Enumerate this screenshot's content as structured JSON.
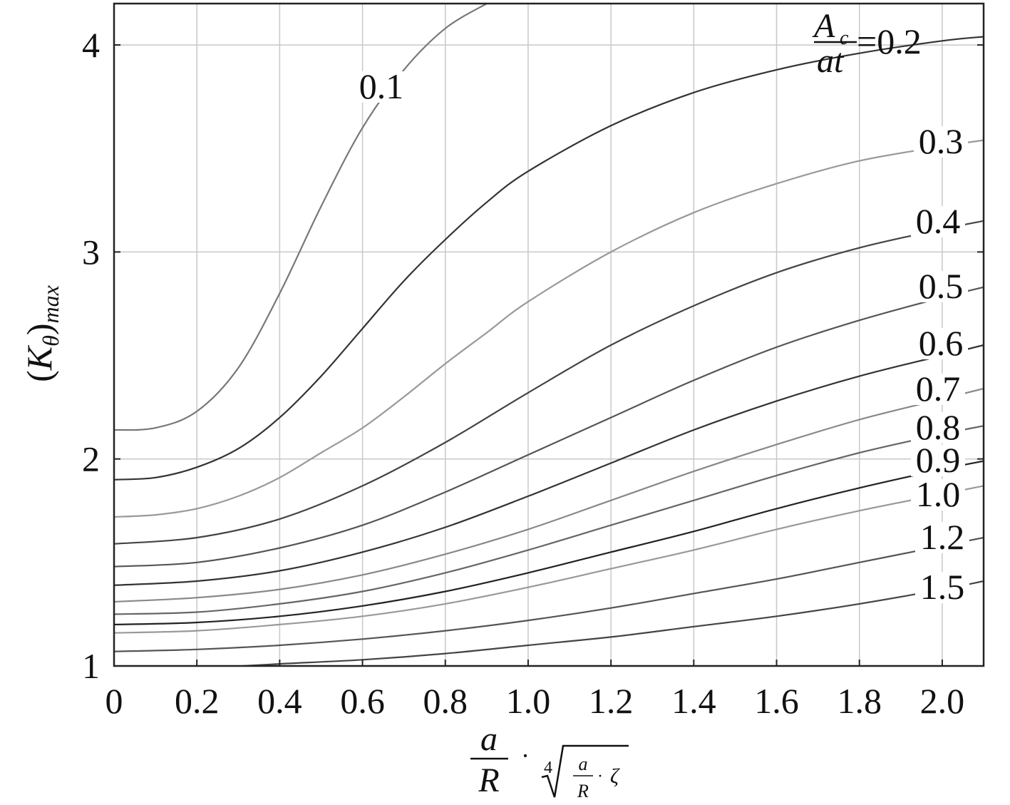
{
  "chart_data": {
    "type": "line",
    "title": "",
    "xlabel": "a/R · (a/R · ζ)^(1/4)",
    "ylabel": "(Kθ)max",
    "ylabel_parts": {
      "open": "(",
      "K": "K",
      "theta": "θ",
      "close": ")",
      "sub": "max"
    },
    "xlabel_parts": {
      "a": "a",
      "R": "R",
      "dot": "·",
      "root_index": "4",
      "zeta": "ζ"
    },
    "xlim": [
      0,
      2.1
    ],
    "ylim": [
      1,
      4.2
    ],
    "grid": true,
    "x_ticks": [
      0,
      0.2,
      0.4,
      0.6,
      0.8,
      1.0,
      1.2,
      1.4,
      1.6,
      1.8,
      2.0
    ],
    "x_tick_labels": [
      "0",
      "0.2",
      "0.4",
      "0.6",
      "0.8",
      "1.0",
      "1.2",
      "1.4",
      "1.6",
      "1.8",
      "2.0"
    ],
    "y_ticks": [
      1,
      2,
      3,
      4
    ],
    "y_tick_labels": [
      "1",
      "2",
      "3",
      "4"
    ],
    "parameter_label": {
      "numerator": "A",
      "numerator_sub": "c",
      "denominator": "at",
      "suffix": "=0.2"
    },
    "series": [
      {
        "name": "0.1",
        "color": "#777777",
        "x": [
          0,
          0.1,
          0.2,
          0.3,
          0.4,
          0.5,
          0.6,
          0.7,
          0.8,
          0.9
        ],
        "y": [
          2.14,
          2.15,
          2.23,
          2.44,
          2.8,
          3.22,
          3.6,
          3.88,
          4.08,
          4.2
        ]
      },
      {
        "name": "0.2",
        "color": "#333333",
        "x": [
          0,
          0.1,
          0.2,
          0.3,
          0.4,
          0.5,
          0.6,
          0.7,
          0.8,
          0.9,
          1.0,
          1.2,
          1.4,
          1.6,
          1.8,
          2.0,
          2.1
        ],
        "y": [
          1.9,
          1.91,
          1.96,
          2.05,
          2.2,
          2.4,
          2.63,
          2.86,
          3.06,
          3.24,
          3.39,
          3.61,
          3.77,
          3.88,
          3.96,
          4.02,
          4.04
        ]
      },
      {
        "name": "0.3",
        "color": "#999999",
        "x": [
          0,
          0.1,
          0.2,
          0.3,
          0.4,
          0.5,
          0.6,
          0.7,
          0.8,
          0.9,
          1.0,
          1.2,
          1.4,
          1.6,
          1.8,
          2.0,
          2.1
        ],
        "y": [
          1.72,
          1.73,
          1.76,
          1.82,
          1.91,
          2.03,
          2.15,
          2.3,
          2.46,
          2.61,
          2.76,
          3.0,
          3.19,
          3.33,
          3.44,
          3.51,
          3.54
        ]
      },
      {
        "name": "0.4",
        "color": "#444444",
        "x": [
          0,
          0.2,
          0.4,
          0.6,
          0.8,
          1.0,
          1.2,
          1.4,
          1.6,
          1.8,
          2.0,
          2.1
        ],
        "y": [
          1.59,
          1.62,
          1.71,
          1.87,
          2.08,
          2.32,
          2.55,
          2.74,
          2.9,
          3.02,
          3.11,
          3.15
        ]
      },
      {
        "name": "0.5",
        "color": "#555555",
        "x": [
          0,
          0.2,
          0.4,
          0.6,
          0.8,
          1.0,
          1.2,
          1.4,
          1.6,
          1.8,
          2.0,
          2.1
        ],
        "y": [
          1.48,
          1.5,
          1.57,
          1.68,
          1.84,
          2.02,
          2.2,
          2.38,
          2.54,
          2.67,
          2.78,
          2.83
        ]
      },
      {
        "name": "0.6",
        "color": "#333333",
        "x": [
          0,
          0.2,
          0.4,
          0.6,
          0.8,
          1.0,
          1.2,
          1.4,
          1.6,
          1.8,
          2.0,
          2.1
        ],
        "y": [
          1.39,
          1.41,
          1.46,
          1.55,
          1.67,
          1.82,
          1.98,
          2.14,
          2.28,
          2.4,
          2.5,
          2.55
        ]
      },
      {
        "name": "0.7",
        "color": "#888888",
        "x": [
          0,
          0.2,
          0.4,
          0.6,
          0.8,
          1.0,
          1.2,
          1.4,
          1.6,
          1.8,
          2.0,
          2.1
        ],
        "y": [
          1.31,
          1.33,
          1.37,
          1.44,
          1.54,
          1.66,
          1.8,
          1.94,
          2.07,
          2.19,
          2.29,
          2.34
        ]
      },
      {
        "name": "0.8",
        "color": "#666666",
        "x": [
          0,
          0.2,
          0.4,
          0.6,
          0.8,
          1.0,
          1.2,
          1.4,
          1.6,
          1.8,
          2.0,
          2.1
        ],
        "y": [
          1.25,
          1.26,
          1.3,
          1.36,
          1.45,
          1.56,
          1.68,
          1.8,
          1.92,
          2.03,
          2.12,
          2.16
        ]
      },
      {
        "name": "0.9",
        "color": "#222222",
        "x": [
          0,
          0.2,
          0.4,
          0.6,
          0.8,
          1.0,
          1.2,
          1.4,
          1.6,
          1.8,
          2.0,
          2.1
        ],
        "y": [
          1.2,
          1.21,
          1.24,
          1.29,
          1.36,
          1.45,
          1.55,
          1.65,
          1.76,
          1.86,
          1.95,
          1.99
        ]
      },
      {
        "name": "1.0",
        "color": "#999999",
        "x": [
          0,
          0.2,
          0.4,
          0.6,
          0.8,
          1.0,
          1.2,
          1.4,
          1.6,
          1.8,
          2.0,
          2.1
        ],
        "y": [
          1.16,
          1.17,
          1.2,
          1.24,
          1.3,
          1.38,
          1.47,
          1.56,
          1.66,
          1.75,
          1.83,
          1.87
        ]
      },
      {
        "name": "1.2",
        "color": "#555555",
        "x": [
          0,
          0.2,
          0.4,
          0.6,
          0.8,
          1.0,
          1.2,
          1.4,
          1.6,
          1.8,
          2.0,
          2.1
        ],
        "y": [
          1.07,
          1.08,
          1.1,
          1.13,
          1.17,
          1.22,
          1.28,
          1.35,
          1.42,
          1.5,
          1.58,
          1.62
        ]
      },
      {
        "name": "1.5",
        "color": "#444444",
        "x": [
          0.31,
          0.4,
          0.6,
          0.8,
          1.0,
          1.2,
          1.4,
          1.6,
          1.8,
          2.0,
          2.1
        ],
        "y": [
          1.0,
          1.01,
          1.03,
          1.06,
          1.1,
          1.14,
          1.19,
          1.24,
          1.3,
          1.37,
          1.41
        ]
      }
    ]
  }
}
